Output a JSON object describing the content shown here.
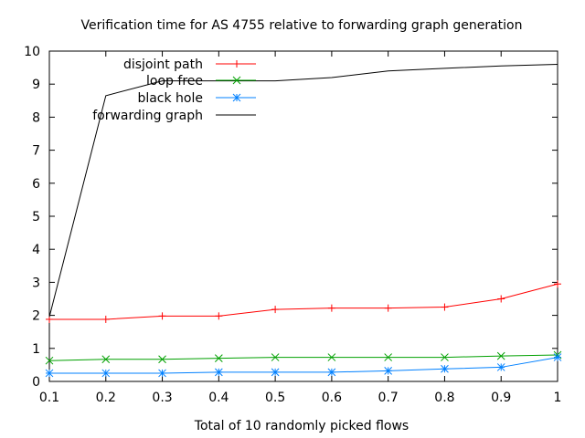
{
  "chart_data": {
    "type": "line",
    "title": "Verification time for AS 4755 relative to forwarding graph generation",
    "xlabel": "Total of 10 randomly picked flows",
    "ylabel": "",
    "xlim": [
      0.1,
      1.0
    ],
    "ylim": [
      0,
      10
    ],
    "x_ticks": [
      0.1,
      0.2,
      0.3,
      0.4,
      0.5,
      0.6,
      0.7,
      0.8,
      0.9,
      1.0
    ],
    "x_tick_labels": [
      "0.1",
      "0.2",
      "0.3",
      "0.4",
      "0.5",
      "0.6",
      "0.7",
      "0.8",
      "0.9",
      "1"
    ],
    "y_ticks": [
      0,
      1,
      2,
      3,
      4,
      5,
      6,
      7,
      8,
      9,
      10
    ],
    "y_tick_labels": [
      "0",
      "1",
      "2",
      "3",
      "4",
      "5",
      "6",
      "7",
      "8",
      "9",
      "10"
    ],
    "grid": false,
    "legend_position": "top-left",
    "x": [
      0.1,
      0.2,
      0.3,
      0.4,
      0.5,
      0.6,
      0.7,
      0.8,
      0.9,
      1.0
    ],
    "series": [
      {
        "name": "disjoint path",
        "color": "#ff0000",
        "marker": "plus",
        "values": [
          1.88,
          1.88,
          1.98,
          1.98,
          2.18,
          2.22,
          2.22,
          2.25,
          2.5,
          2.95
        ]
      },
      {
        "name": "loop free",
        "color": "#00a000",
        "marker": "cross",
        "values": [
          0.63,
          0.67,
          0.67,
          0.7,
          0.73,
          0.73,
          0.73,
          0.73,
          0.77,
          0.8
        ]
      },
      {
        "name": "black hole",
        "color": "#0080ff",
        "marker": "star",
        "values": [
          0.25,
          0.25,
          0.25,
          0.28,
          0.28,
          0.28,
          0.32,
          0.38,
          0.43,
          0.73
        ]
      },
      {
        "name": "forwarding graph",
        "color": "#000000",
        "marker": "none",
        "values": [
          1.95,
          8.65,
          9.1,
          9.1,
          9.1,
          9.2,
          9.4,
          9.48,
          9.55,
          9.6
        ]
      }
    ]
  }
}
